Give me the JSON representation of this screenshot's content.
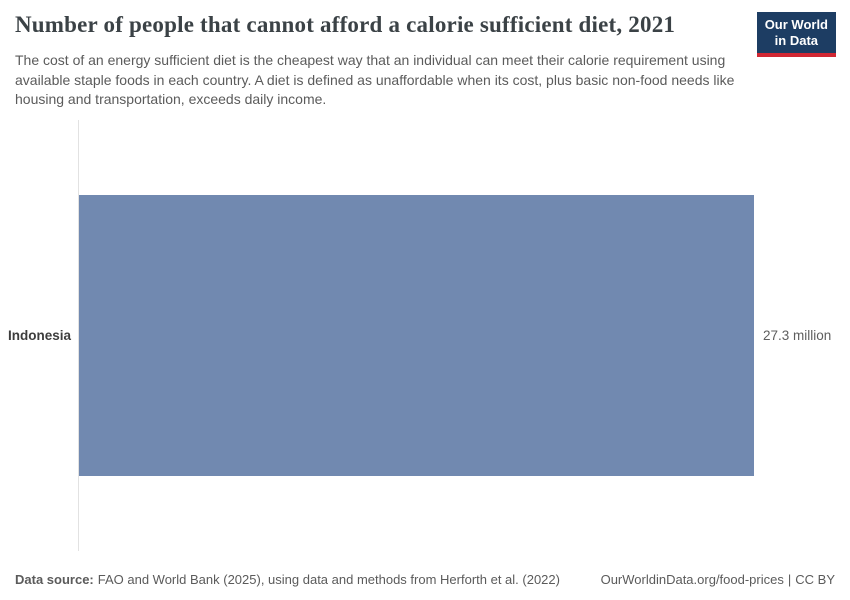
{
  "header": {
    "title": "Number of people that cannot afford a calorie sufficient diet, 2021",
    "subtitle": "The cost of an energy sufficient diet is the cheapest way that an individual can meet their calorie requirement using available staple foods in each country. A diet is defined as unaffordable when its cost, plus basic non-food needs like housing and transportation, exceeds daily income."
  },
  "logo": {
    "line1": "Our World",
    "line2": "in Data",
    "bg_color": "#1d3d63",
    "accent_color": "#d12733"
  },
  "chart_data": {
    "type": "bar",
    "orientation": "horizontal",
    "title": "Number of people that cannot afford a calorie sufficient diet",
    "year": "2021",
    "categories": [
      "Indonesia"
    ],
    "values": [
      27.3
    ],
    "unit": "million",
    "value_labels": [
      "27.3 million"
    ],
    "xlim": [
      0,
      27.3
    ],
    "grid": false,
    "legend": "none",
    "bar_color": "#7189b0",
    "axis_line_color": "#e2e2e2"
  },
  "footer": {
    "source_label": "Data source:",
    "source_text": "FAO and World Bank (2025), using data and methods from Herforth et al. (2022)",
    "url": "OurWorldinData.org/food-prices",
    "separator": "|",
    "license": "CC BY"
  }
}
